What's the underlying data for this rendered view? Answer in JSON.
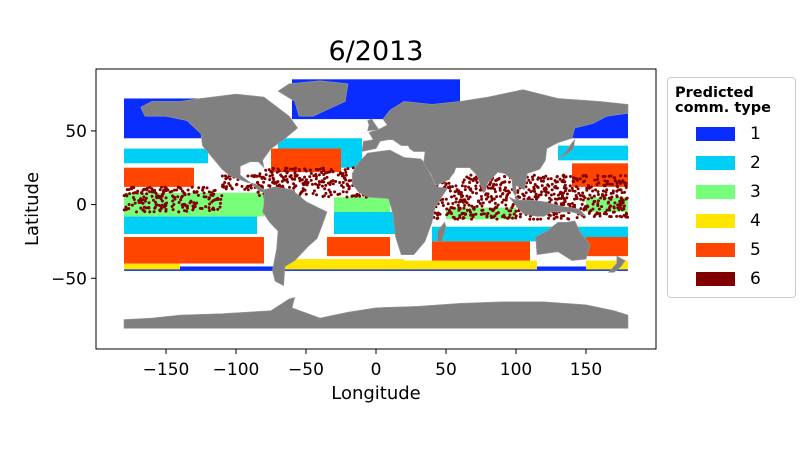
{
  "chart_data": {
    "type": "scatter",
    "title": "6/2013",
    "xlabel": "Longitude",
    "ylabel": "Latitude",
    "xlim": [
      -200,
      200
    ],
    "ylim": [
      -98,
      92
    ],
    "xticks": [
      -150,
      -100,
      -50,
      0,
      50,
      100,
      150
    ],
    "xtick_labels": [
      "−150",
      "−100",
      "−50",
      "0",
      "50",
      "100",
      "150"
    ],
    "yticks": [
      -50,
      0,
      50
    ],
    "ytick_labels": [
      "−50",
      "0",
      "50"
    ],
    "grid": false,
    "land_color": "#808080",
    "legend": {
      "title": "Predicted\ncomm. type",
      "placement": "outside-right",
      "entries": [
        {
          "label": "1",
          "color": "#0a2dff"
        },
        {
          "label": "2",
          "color": "#00cff5"
        },
        {
          "label": "3",
          "color": "#78ff7a"
        },
        {
          "label": "4",
          "color": "#ffe500"
        },
        {
          "label": "5",
          "color": "#ff4500"
        },
        {
          "label": "6",
          "color": "#800000"
        }
      ]
    },
    "series": [
      {
        "name": "1",
        "color": "#0a2dff",
        "regions": [
          {
            "lon": [
              -180,
              -125
            ],
            "lat": [
              45,
              72
            ]
          },
          {
            "lon": [
              125,
              180
            ],
            "lat": [
              45,
              65
            ]
          },
          {
            "lon": [
              -60,
              60
            ],
            "lat": [
              58,
              85
            ]
          },
          {
            "lon": [
              -180,
              180
            ],
            "lat": [
              -45,
              -42
            ]
          }
        ]
      },
      {
        "name": "2",
        "color": "#00cff5",
        "regions": [
          {
            "lon": [
              -180,
              -120
            ],
            "lat": [
              28,
              38
            ]
          },
          {
            "lon": [
              130,
              180
            ],
            "lat": [
              30,
              40
            ]
          },
          {
            "lon": [
              -180,
              -85
            ],
            "lat": [
              -20,
              -8
            ]
          },
          {
            "lon": [
              -30,
              15
            ],
            "lat": [
              -20,
              -5
            ]
          },
          {
            "lon": [
              40,
              180
            ],
            "lat": [
              -25,
              -15
            ]
          },
          {
            "lon": [
              -70,
              -10
            ],
            "lat": [
              25,
              45
            ]
          }
        ]
      },
      {
        "name": "3",
        "color": "#78ff7a",
        "regions": [
          {
            "lon": [
              -180,
              -80
            ],
            "lat": [
              -8,
              8
            ]
          },
          {
            "lon": [
              -30,
              10
            ],
            "lat": [
              -5,
              5
            ]
          },
          {
            "lon": [
              50,
              100
            ],
            "lat": [
              -10,
              -2
            ]
          },
          {
            "lon": [
              150,
              180
            ],
            "lat": [
              -5,
              5
            ]
          }
        ]
      },
      {
        "name": "4",
        "color": "#ffe500",
        "regions": [
          {
            "lon": [
              -70,
              20
            ],
            "lat": [
              -44,
              -37
            ]
          },
          {
            "lon": [
              20,
              115
            ],
            "lat": [
              -44,
              -38
            ]
          },
          {
            "lon": [
              150,
              180
            ],
            "lat": [
              -44,
              -38
            ]
          },
          {
            "lon": [
              -180,
              -140
            ],
            "lat": [
              -44,
              -40
            ]
          }
        ]
      },
      {
        "name": "5",
        "color": "#ff4500",
        "regions": [
          {
            "lon": [
              -180,
              -130
            ],
            "lat": [
              12,
              25
            ]
          },
          {
            "lon": [
              140,
              180
            ],
            "lat": [
              12,
              28
            ]
          },
          {
            "lon": [
              -180,
              -80
            ],
            "lat": [
              -40,
              -22
            ]
          },
          {
            "lon": [
              -75,
              -25
            ],
            "lat": [
              22,
              38
            ]
          },
          {
            "lon": [
              -35,
              10
            ],
            "lat": [
              -35,
              -22
            ]
          },
          {
            "lon": [
              40,
              110
            ],
            "lat": [
              -38,
              -25
            ]
          },
          {
            "lon": [
              150,
              180
            ],
            "lat": [
              -35,
              -22
            ]
          }
        ]
      },
      {
        "name": "6",
        "color": "#800000",
        "regions": [
          {
            "lon": [
              -180,
              -110
            ],
            "lat": [
              -5,
              12
            ]
          },
          {
            "lon": [
              -85,
              10
            ],
            "lat": [
              5,
              25
            ]
          },
          {
            "lon": [
              40,
              110
            ],
            "lat": [
              -10,
              20
            ]
          },
          {
            "lon": [
              110,
              180
            ],
            "lat": [
              -10,
              20
            ]
          },
          {
            "lon": [
              -110,
              -80
            ],
            "lat": [
              10,
              20
            ]
          }
        ]
      }
    ]
  }
}
